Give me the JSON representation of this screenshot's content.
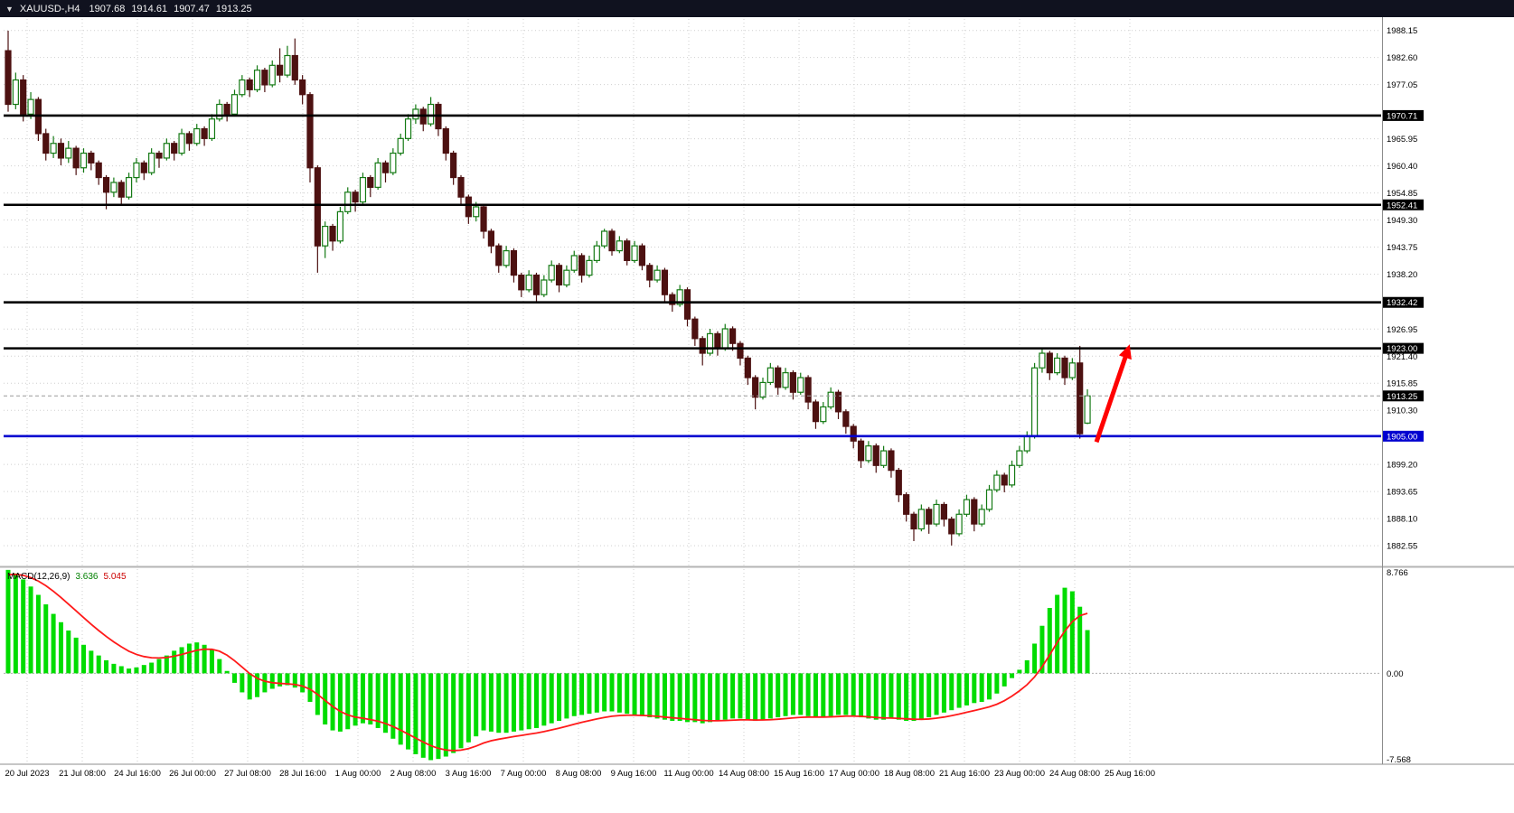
{
  "title_bar": {
    "dropdown_icon": "▼",
    "symbol": "XAUUSD-,H4",
    "open": "1907.68",
    "high": "1914.61",
    "low": "1907.47",
    "close": "1913.25"
  },
  "colors": {
    "bull": "#147a14",
    "bear": "#4d1111",
    "macd_histogram": "#00dc00",
    "macd_signal": "#ff1a1a",
    "level_black": "#000000",
    "level_blue": "#0000d0",
    "arrow": "#ff0000",
    "grid": "#cfcfcf",
    "axis_text": "#000000",
    "badge_text": "#ffffff"
  },
  "chart_data": {
    "type": "candlestick",
    "symbol": "XAUUSD",
    "timeframe": "H4",
    "ohlc_current": {
      "open": 1907.68,
      "high": 1914.61,
      "low": 1907.47,
      "close": 1913.25
    },
    "price_range": [
      1878.5,
      1990.5
    ],
    "axis_ticks": [
      1988.15,
      1982.6,
      1977.05,
      1965.95,
      1960.4,
      1954.85,
      1949.3,
      1943.75,
      1938.2,
      1926.95,
      1921.4,
      1915.85,
      1910.3,
      1899.2,
      1893.65,
      1888.1,
      1882.55
    ],
    "levels": [
      {
        "price": 1970.71,
        "label": "1970.71",
        "color": "black"
      },
      {
        "price": 1952.41,
        "label": "1952.41",
        "color": "black"
      },
      {
        "price": 1932.42,
        "label": "1932.42",
        "color": "black"
      },
      {
        "price": 1923.0,
        "label": "1923.00",
        "color": "black"
      },
      {
        "price": 1905.0,
        "label": "1905.00",
        "color": "blue"
      }
    ],
    "current_price": {
      "price": 1913.25,
      "label": "1913.25"
    },
    "x_labels": [
      "20 Jul 2023",
      "21 Jul 08:00",
      "24 Jul 16:00",
      "26 Jul 00:00",
      "27 Jul 08:00",
      "28 Jul 16:00",
      "1 Aug 00:00",
      "2 Aug 08:00",
      "3 Aug 16:00",
      "7 Aug 00:00",
      "8 Aug 08:00",
      "9 Aug 16:00",
      "11 Aug 00:00",
      "14 Aug 08:00",
      "15 Aug 16:00",
      "17 Aug 00:00",
      "18 Aug 08:00",
      "21 Aug 16:00",
      "23 Aug 00:00",
      "24 Aug 08:00",
      "25 Aug 16:00"
    ],
    "candles": [
      [
        1984,
        1988.1,
        1971.5,
        1973
      ],
      [
        1973,
        1979.5,
        1972,
        1978
      ],
      [
        1978,
        1979,
        1969.5,
        1971
      ],
      [
        1971,
        1975.5,
        1970,
        1974
      ],
      [
        1974,
        1974.5,
        1965.5,
        1967
      ],
      [
        1967,
        1968,
        1961.5,
        1963
      ],
      [
        1963,
        1966.5,
        1962,
        1965
      ],
      [
        1965,
        1966,
        1960.5,
        1962
      ],
      [
        1962,
        1965.5,
        1961,
        1964
      ],
      [
        1964,
        1964.5,
        1958.5,
        1960
      ],
      [
        1960,
        1964,
        1959,
        1963
      ],
      [
        1963,
        1963.5,
        1959.5,
        1961
      ],
      [
        1961,
        1961.5,
        1956.5,
        1958
      ],
      [
        1958,
        1958.5,
        1951.5,
        1955
      ],
      [
        1955,
        1958,
        1954,
        1957
      ],
      [
        1957,
        1957.5,
        1952.5,
        1954
      ],
      [
        1954,
        1959,
        1953.5,
        1958
      ],
      [
        1958,
        1962,
        1957,
        1961
      ],
      [
        1961,
        1961.5,
        1957.5,
        1959
      ],
      [
        1959,
        1964,
        1958.5,
        1963
      ],
      [
        1963,
        1963.5,
        1960,
        1962
      ],
      [
        1962,
        1966,
        1961.5,
        1965
      ],
      [
        1965,
        1965.5,
        1961.5,
        1963
      ],
      [
        1963,
        1968,
        1962.5,
        1967
      ],
      [
        1967,
        1967.5,
        1963.5,
        1965
      ],
      [
        1965,
        1969,
        1964.5,
        1968
      ],
      [
        1968,
        1968.5,
        1964.5,
        1966
      ],
      [
        1966,
        1971,
        1965.5,
        1970
      ],
      [
        1970,
        1974,
        1969.5,
        1973
      ],
      [
        1973,
        1973.5,
        1969.5,
        1971
      ],
      [
        1971,
        1976,
        1970.5,
        1975
      ],
      [
        1975,
        1979,
        1974.5,
        1978
      ],
      [
        1978,
        1978.5,
        1974.5,
        1976
      ],
      [
        1976,
        1981,
        1975.5,
        1980
      ],
      [
        1980,
        1980.5,
        1975.5,
        1977
      ],
      [
        1977,
        1982,
        1976.5,
        1981
      ],
      [
        1981,
        1984.5,
        1977.5,
        1979
      ],
      [
        1979,
        1985,
        1978.5,
        1983
      ],
      [
        1983,
        1986.5,
        1977,
        1978
      ],
      [
        1978,
        1979,
        1973,
        1975
      ],
      [
        1975,
        1975.5,
        1957,
        1960
      ],
      [
        1960,
        1960.5,
        1938.5,
        1944
      ],
      [
        1944,
        1949,
        1941.5,
        1948
      ],
      [
        1948,
        1948.5,
        1943,
        1945
      ],
      [
        1945,
        1952,
        1944.5,
        1951
      ],
      [
        1951,
        1956,
        1950.5,
        1955
      ],
      [
        1955,
        1955.5,
        1951,
        1953
      ],
      [
        1953,
        1959,
        1952.5,
        1958
      ],
      [
        1958,
        1958.5,
        1954,
        1956
      ],
      [
        1956,
        1962,
        1955.5,
        1961
      ],
      [
        1961,
        1961.5,
        1957,
        1959
      ],
      [
        1959,
        1964,
        1958.5,
        1963
      ],
      [
        1963,
        1967,
        1962.5,
        1966
      ],
      [
        1966,
        1971,
        1965.5,
        1970
      ],
      [
        1970,
        1973,
        1969,
        1972
      ],
      [
        1972,
        1972.5,
        1967.5,
        1969
      ],
      [
        1969,
        1974.5,
        1968.5,
        1973
      ],
      [
        1973,
        1973.5,
        1966.5,
        1968
      ],
      [
        1968,
        1968.5,
        1961.5,
        1963
      ],
      [
        1963,
        1963.5,
        1956.5,
        1958
      ],
      [
        1958,
        1958.5,
        1952.5,
        1954
      ],
      [
        1954,
        1954.5,
        1948.5,
        1950
      ],
      [
        1950,
        1953,
        1949,
        1952
      ],
      [
        1952,
        1952.5,
        1945.5,
        1947
      ],
      [
        1947,
        1947.5,
        1942.5,
        1944
      ],
      [
        1944,
        1944.5,
        1938.5,
        1940
      ],
      [
        1940,
        1944,
        1939.5,
        1943
      ],
      [
        1943,
        1943.5,
        1936.5,
        1938
      ],
      [
        1938,
        1938.5,
        1933.5,
        1935
      ],
      [
        1935,
        1939,
        1934.5,
        1938
      ],
      [
        1938,
        1938.5,
        1932.5,
        1934
      ],
      [
        1934,
        1938,
        1933.5,
        1937
      ],
      [
        1937,
        1941,
        1936.5,
        1940
      ],
      [
        1940,
        1940.5,
        1934.5,
        1936
      ],
      [
        1936,
        1940,
        1935.5,
        1939
      ],
      [
        1939,
        1943,
        1938.5,
        1942
      ],
      [
        1942,
        1942.5,
        1936.5,
        1938
      ],
      [
        1938,
        1942,
        1937.5,
        1941
      ],
      [
        1941,
        1945,
        1940.5,
        1944
      ],
      [
        1944,
        1947.5,
        1943.5,
        1947
      ],
      [
        1947,
        1947.5,
        1942,
        1943
      ],
      [
        1943,
        1946,
        1942.5,
        1945
      ],
      [
        1945,
        1945.5,
        1940,
        1941
      ],
      [
        1941,
        1945,
        1940.5,
        1944
      ],
      [
        1944,
        1944.5,
        1939,
        1940
      ],
      [
        1940,
        1940.5,
        1935.5,
        1937
      ],
      [
        1937,
        1940,
        1936.5,
        1939
      ],
      [
        1939,
        1939.5,
        1932.5,
        1934
      ],
      [
        1934,
        1934.5,
        1930.5,
        1932
      ],
      [
        1932,
        1936,
        1931.5,
        1935
      ],
      [
        1935,
        1935.5,
        1927.5,
        1929
      ],
      [
        1929,
        1929.5,
        1923.5,
        1925
      ],
      [
        1925,
        1925.5,
        1919.5,
        1922
      ],
      [
        1922,
        1927,
        1921.5,
        1926
      ],
      [
        1926,
        1926.5,
        1921.5,
        1923
      ],
      [
        1923,
        1928,
        1922.5,
        1927
      ],
      [
        1927,
        1927.5,
        1922.5,
        1924
      ],
      [
        1924,
        1924.5,
        1919.5,
        1921
      ],
      [
        1921,
        1921.5,
        1915.5,
        1917
      ],
      [
        1917,
        1917.5,
        1910.5,
        1913
      ],
      [
        1913,
        1917,
        1912.5,
        1916
      ],
      [
        1916,
        1920,
        1915.5,
        1919
      ],
      [
        1919,
        1919.5,
        1913.5,
        1915
      ],
      [
        1915,
        1919,
        1914.5,
        1918
      ],
      [
        1918,
        1918.5,
        1912.5,
        1914
      ],
      [
        1914,
        1918,
        1913.5,
        1917
      ],
      [
        1917,
        1917.5,
        1910.5,
        1912
      ],
      [
        1912,
        1912.5,
        1906.5,
        1908
      ],
      [
        1908,
        1912,
        1907.5,
        1911
      ],
      [
        1911,
        1915,
        1910.5,
        1914
      ],
      [
        1914,
        1914.5,
        1908.5,
        1910
      ],
      [
        1910,
        1910.5,
        1905.5,
        1907
      ],
      [
        1907,
        1907.5,
        1902.5,
        1904
      ],
      [
        1904,
        1904.5,
        1898.5,
        1900
      ],
      [
        1900,
        1904,
        1899.5,
        1903
      ],
      [
        1903,
        1903.5,
        1897.5,
        1899
      ],
      [
        1899,
        1903,
        1898.5,
        1902
      ],
      [
        1902,
        1902.5,
        1896.5,
        1898
      ],
      [
        1898,
        1898.5,
        1891.5,
        1893
      ],
      [
        1893,
        1893.5,
        1887.5,
        1889
      ],
      [
        1889,
        1889.5,
        1883.5,
        1886
      ],
      [
        1886,
        1891,
        1885.5,
        1890
      ],
      [
        1890,
        1890.5,
        1885,
        1887
      ],
      [
        1887,
        1892,
        1886.5,
        1891
      ],
      [
        1891,
        1891.5,
        1886.5,
        1888
      ],
      [
        1888,
        1888.5,
        1882.6,
        1885
      ],
      [
        1885,
        1890,
        1884.5,
        1889
      ],
      [
        1889,
        1893,
        1888.5,
        1892
      ],
      [
        1892,
        1892.5,
        1885.5,
        1887
      ],
      [
        1887,
        1891,
        1886.5,
        1890
      ],
      [
        1890,
        1895,
        1889.5,
        1894
      ],
      [
        1894,
        1898,
        1893.5,
        1897
      ],
      [
        1897,
        1897.5,
        1893.5,
        1895
      ],
      [
        1895,
        1900,
        1894.5,
        1899
      ],
      [
        1899,
        1903,
        1898.5,
        1902
      ],
      [
        1902,
        1906,
        1901.5,
        1905
      ],
      [
        1905,
        1920,
        1904.5,
        1919
      ],
      [
        1919,
        1923,
        1918,
        1922
      ],
      [
        1922,
        1922.5,
        1916.5,
        1918
      ],
      [
        1918,
        1922,
        1917.5,
        1921
      ],
      [
        1921,
        1921.5,
        1915.5,
        1917
      ],
      [
        1917,
        1921,
        1916.5,
        1920
      ],
      [
        1920,
        1923.5,
        1904.5,
        1905.5
      ],
      [
        1907.68,
        1914.61,
        1907.47,
        1913.25
      ]
    ],
    "macd": {
      "label": "MACD(12,26,9)",
      "value_main": "3.636",
      "value_signal": "5.045",
      "scale_max": 8.766,
      "scale_min": -7.568,
      "scale_labels": {
        "top": "8.766",
        "zero": "0.00",
        "bottom": "-7.568"
      },
      "histogram": [
        8.7,
        8.4,
        7.9,
        7.3,
        6.6,
        5.8,
        5.0,
        4.3,
        3.6,
        3.0,
        2.4,
        1.9,
        1.5,
        1.1,
        0.8,
        0.6,
        0.4,
        0.5,
        0.7,
        0.9,
        1.2,
        1.5,
        1.9,
        2.2,
        2.5,
        2.6,
        2.4,
        2.0,
        1.2,
        0.2,
        -0.8,
        -1.6,
        -2.2,
        -2.0,
        -1.6,
        -1.3,
        -1.1,
        -1.0,
        -1.2,
        -1.6,
        -2.4,
        -3.5,
        -4.3,
        -4.8,
        -4.9,
        -4.7,
        -4.4,
        -4.2,
        -4.3,
        -4.6,
        -5.0,
        -5.5,
        -6.0,
        -6.4,
        -6.8,
        -7.1,
        -7.3,
        -7.2,
        -7.0,
        -6.7,
        -6.3,
        -5.8,
        -5.3,
        -4.8,
        -4.9,
        -5.0,
        -5.0,
        -4.9,
        -4.8,
        -4.7,
        -4.6,
        -4.4,
        -4.2,
        -4.0,
        -3.8,
        -3.6,
        -3.5,
        -3.4,
        -3.3,
        -3.2,
        -3.2,
        -3.3,
        -3.4,
        -3.5,
        -3.6,
        -3.7,
        -3.8,
        -3.9,
        -4.0,
        -4.0,
        -4.1,
        -4.1,
        -4.2,
        -4.1,
        -4.0,
        -3.9,
        -3.8,
        -3.8,
        -3.9,
        -4.0,
        -3.9,
        -3.8,
        -3.7,
        -3.6,
        -3.5,
        -3.5,
        -3.6,
        -3.7,
        -3.7,
        -3.6,
        -3.5,
        -3.5,
        -3.6,
        -3.7,
        -3.8,
        -3.9,
        -3.9,
        -3.8,
        -3.9,
        -4.0,
        -4.0,
        -3.9,
        -3.7,
        -3.5,
        -3.3,
        -3.1,
        -2.9,
        -2.7,
        -2.5,
        -2.4,
        -2.2,
        -1.7,
        -1.1,
        -0.4,
        0.3,
        1.1,
        2.5,
        4.0,
        5.5,
        6.6,
        7.2,
        6.9,
        5.6,
        3.636
      ],
      "signal": [
        8.3,
        8.32,
        8.24,
        8.05,
        7.76,
        7.37,
        6.9,
        6.38,
        5.82,
        5.26,
        4.69,
        4.13,
        3.6,
        3.1,
        2.64,
        2.23,
        1.86,
        1.59,
        1.41,
        1.31,
        1.29,
        1.33,
        1.44,
        1.59,
        1.77,
        1.94,
        2.03,
        2.02,
        1.86,
        1.53,
        1.06,
        0.53,
        -0.02,
        -0.42,
        -0.66,
        -0.79,
        -0.85,
        -0.88,
        -0.94,
        -1.07,
        -1.34,
        -1.77,
        -2.28,
        -2.78,
        -3.2,
        -3.5,
        -3.68,
        -3.78,
        -3.89,
        -4.03,
        -4.22,
        -4.48,
        -4.78,
        -5.11,
        -5.45,
        -5.78,
        -6.08,
        -6.31,
        -6.45,
        -6.5,
        -6.46,
        -6.33,
        -6.12,
        -5.86,
        -5.67,
        -5.54,
        -5.43,
        -5.32,
        -5.22,
        -5.12,
        -5.02,
        -4.9,
        -4.76,
        -4.61,
        -4.45,
        -4.28,
        -4.12,
        -3.98,
        -3.84,
        -3.71,
        -3.61,
        -3.55,
        -3.52,
        -3.52,
        -3.54,
        -3.57,
        -3.62,
        -3.68,
        -3.74,
        -3.79,
        -3.85,
        -3.9,
        -3.96,
        -3.99,
        -3.99,
        -3.97,
        -3.94,
        -3.91,
        -3.91,
        -3.93,
        -3.92,
        -3.9,
        -3.86,
        -3.81,
        -3.75,
        -3.7,
        -3.68,
        -3.68,
        -3.68,
        -3.66,
        -3.63,
        -3.6,
        -3.6,
        -3.62,
        -3.66,
        -3.71,
        -3.75,
        -3.76,
        -3.79,
        -3.83,
        -3.86,
        -3.87,
        -3.84,
        -3.77,
        -3.68,
        -3.56,
        -3.43,
        -3.28,
        -3.13,
        -2.98,
        -2.82,
        -2.6,
        -2.3,
        -1.92,
        -1.47,
        -0.96,
        -0.3,
        0.55,
        1.55,
        2.6,
        3.55,
        4.35,
        4.85,
        5.045
      ]
    },
    "annotations": [
      {
        "type": "up-arrow",
        "from": {
          "bar": 144.2,
          "price": 1903.8
        },
        "to": {
          "bar": 148.6,
          "price": 1923.8
        }
      }
    ]
  }
}
